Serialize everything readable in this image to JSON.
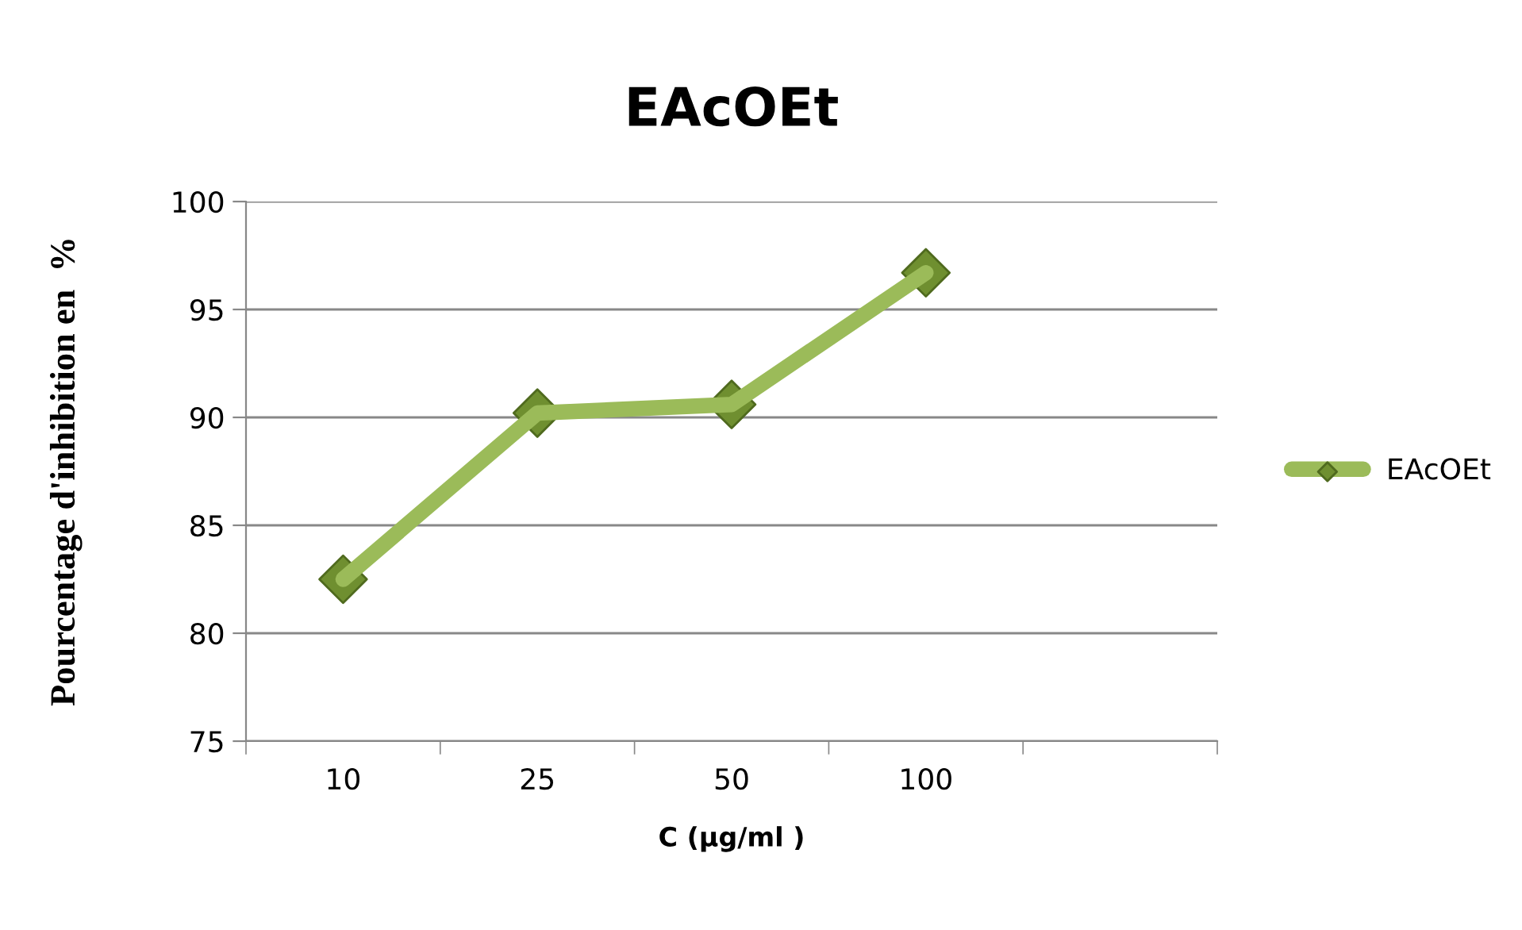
{
  "chart_data": {
    "type": "line",
    "title": "EAcOEt",
    "xlabel": "C (µg/ml )",
    "ylabel": "Pourcentage d'inhibition en  %",
    "categories": [
      "10",
      "25",
      "50",
      "100",
      null
    ],
    "series": [
      {
        "name": "EAcOEt",
        "color": "#9bbb59",
        "values": [
          82.5,
          90.2,
          90.6,
          96.7,
          null
        ]
      }
    ],
    "ylim": [
      75,
      100
    ],
    "yticks": [
      75,
      80,
      85,
      90,
      95,
      100
    ],
    "grid": "y",
    "legend": "right",
    "marker": "diamond",
    "line_style": "solid"
  }
}
